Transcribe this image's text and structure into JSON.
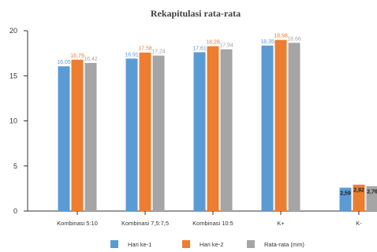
{
  "chart_data": {
    "type": "bar",
    "title": "Rekapitulasi rata-rata",
    "xlabel": "",
    "ylabel": "",
    "ylim": [
      0,
      20
    ],
    "yticks": [
      0,
      5,
      10,
      15,
      20
    ],
    "grid": false,
    "legend_position": "bottom",
    "categories": [
      "Kombinasi 5:10",
      "Kombinasi 7,5:7,5",
      "Kombinasi 10:5",
      "K+",
      "K-"
    ],
    "series": [
      {
        "name": "Hari ke-1",
        "color": "#5b9bd5",
        "values": [
          16.05,
          16.91,
          17.61,
          18.35,
          2.59
        ],
        "labels": [
          "16,05",
          "16,91",
          "17,61",
          "18,35",
          "2,59"
        ]
      },
      {
        "name": "Hari ke-2",
        "color": "#ed7d31",
        "values": [
          16.79,
          17.58,
          18.28,
          18.98,
          2.92
        ],
        "labels": [
          "16,79",
          "17,58",
          "18,28",
          "18,98",
          "2,92"
        ]
      },
      {
        "name": "Rata-rata (mm)",
        "color": "#a5a5a5",
        "values": [
          16.42,
          17.24,
          17.94,
          18.66,
          2.76
        ],
        "labels": [
          "16,42",
          "17,24",
          "17,94",
          "18,66",
          "2,76"
        ]
      }
    ]
  }
}
